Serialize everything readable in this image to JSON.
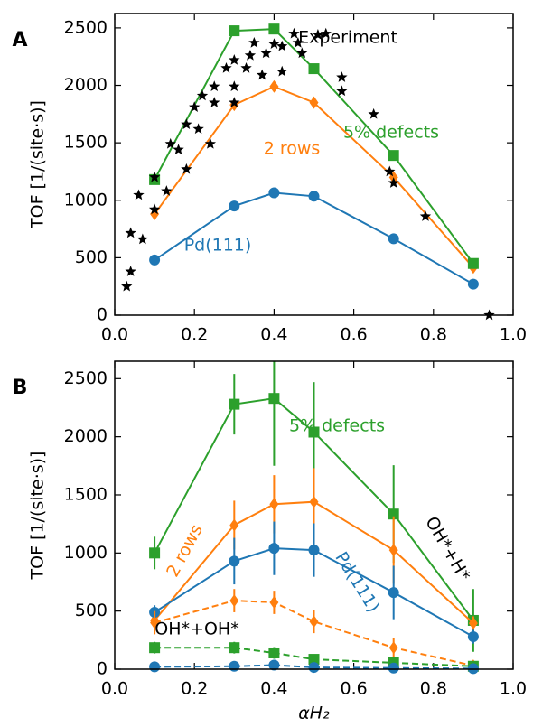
{
  "chart_data": [
    {
      "type": "line",
      "panel_label": "A",
      "ylabel": "TOF [1/(site·s)]",
      "xlim": [
        0,
        1
      ],
      "ylim": [
        0,
        2625
      ],
      "xticks": [
        {
          "value": 0,
          "label": "0.0"
        },
        0.2,
        0.4,
        0.6,
        0.8,
        {
          "value": 1,
          "label": "1.0"
        }
      ],
      "yticks": [
        0,
        500,
        1000,
        1500,
        2000,
        2500
      ],
      "series": [
        {
          "color": "#1f77b4",
          "marker": "circle",
          "linestyle": "solid",
          "x": [
            0.1,
            0.3,
            0.4,
            0.5,
            0.7,
            0.9
          ],
          "values": [
            480,
            950,
            1065,
            1035,
            665,
            270
          ]
        },
        {
          "color": "#ff7f0e",
          "marker": "diamond",
          "linestyle": "solid",
          "x": [
            0.1,
            0.3,
            0.4,
            0.5,
            0.7,
            0.9
          ],
          "values": [
            880,
            1830,
            1990,
            1850,
            1200,
            415
          ]
        },
        {
          "color": "#2ca02c",
          "marker": "square",
          "linestyle": "solid",
          "x": [
            0.1,
            0.3,
            0.4,
            0.5,
            0.7,
            0.9
          ],
          "values": [
            1180,
            2475,
            2490,
            2145,
            1390,
            450
          ]
        },
        {
          "color": "#000000",
          "marker": "star",
          "linestyle": "none",
          "x": [
            0.03,
            0.04,
            0.04,
            0.06,
            0.07,
            0.1,
            0.1,
            0.13,
            0.14,
            0.16,
            0.18,
            0.18,
            0.2,
            0.21,
            0.22,
            0.24,
            0.25,
            0.25,
            0.28,
            0.3,
            0.3,
            0.3,
            0.33,
            0.34,
            0.35,
            0.37,
            0.38,
            0.4,
            0.42,
            0.42,
            0.45,
            0.46,
            0.47,
            0.51,
            0.53,
            0.57,
            0.57,
            0.65,
            0.69,
            0.7,
            0.78,
            0.94
          ],
          "values": [
            250,
            715,
            380,
            1045,
            660,
            920,
            1200,
            1080,
            1490,
            1440,
            1660,
            1270,
            1810,
            1620,
            1910,
            1490,
            1990,
            1850,
            2150,
            1990,
            2220,
            1850,
            2150,
            2260,
            2370,
            2090,
            2280,
            2360,
            2340,
            2120,
            2450,
            2370,
            2280,
            2440,
            2450,
            2070,
            1950,
            1750,
            1250,
            1150,
            860,
            0
          ]
        }
      ],
      "annotations": [
        {
          "text": "Experiment",
          "color": "#000000"
        },
        {
          "text": "5% defects",
          "color": "#2ca02c"
        },
        {
          "text": "2 rows",
          "color": "#ff7f0e"
        },
        {
          "text": "Pd(111)",
          "color": "#1f77b4"
        }
      ]
    },
    {
      "type": "line",
      "panel_label": "B",
      "ylabel": "TOF [1/(site·s)]",
      "xlabel": "αH₂",
      "xlim": [
        0,
        1
      ],
      "ylim": [
        0,
        2650
      ],
      "xticks": [
        {
          "value": 0,
          "label": "0.0"
        },
        0.2,
        0.4,
        0.6,
        0.8,
        {
          "value": 1,
          "label": "1.0"
        }
      ],
      "yticks": [
        0,
        500,
        1000,
        1500,
        2000,
        2500
      ],
      "series": [
        {
          "color": "#2ca02c",
          "marker": "square",
          "linestyle": "solid",
          "x": [
            0.1,
            0.3,
            0.4,
            0.5,
            0.7,
            0.9
          ],
          "values": [
            1000,
            2280,
            2330,
            2040,
            1335,
            420
          ],
          "errors": [
            140,
            260,
            580,
            430,
            420,
            270
          ]
        },
        {
          "color": "#ff7f0e",
          "marker": "diamond",
          "linestyle": "solid",
          "x": [
            0.1,
            0.3,
            0.4,
            0.5,
            0.7,
            0.9
          ],
          "values": [
            420,
            1240,
            1420,
            1440,
            1025,
            395
          ],
          "errors": [
            100,
            210,
            250,
            290,
            290,
            60
          ]
        },
        {
          "color": "#1f77b4",
          "marker": "circle",
          "linestyle": "solid",
          "x": [
            0.1,
            0.3,
            0.4,
            0.5,
            0.7,
            0.9
          ],
          "values": [
            490,
            930,
            1040,
            1025,
            660,
            280
          ],
          "errors": [
            60,
            200,
            230,
            230,
            230,
            60
          ]
        },
        {
          "color": "#ff7f0e",
          "marker": "diamond",
          "linestyle": "dashed",
          "x": [
            0.1,
            0.3,
            0.4,
            0.5,
            0.7,
            0.9
          ],
          "values": [
            400,
            590,
            575,
            410,
            185,
            30
          ],
          "errors": [
            100,
            100,
            100,
            100,
            80,
            30
          ]
        },
        {
          "color": "#2ca02c",
          "marker": "square",
          "linestyle": "dashed",
          "x": [
            0.1,
            0.3,
            0.4,
            0.5,
            0.7,
            0.9
          ],
          "values": [
            185,
            185,
            140,
            85,
            55,
            25
          ],
          "errors": [
            50,
            50,
            50,
            40,
            30,
            20
          ]
        },
        {
          "color": "#1f77b4",
          "marker": "circle",
          "linestyle": "dashed",
          "x": [
            0.1,
            0.3,
            0.4,
            0.5,
            0.7,
            0.9
          ],
          "values": [
            20,
            25,
            35,
            15,
            10,
            5
          ],
          "errors": [
            20,
            20,
            20,
            15,
            10,
            5
          ]
        }
      ],
      "annotations": [
        {
          "text": "5% defects",
          "color": "#2ca02c"
        },
        {
          "text": "2 rows",
          "color": "#ff7f0e"
        },
        {
          "text": "Pd(111)",
          "color": "#1f77b4"
        },
        {
          "text": "OH*+H*",
          "color": "#000000"
        },
        {
          "text": "OH*+OH*",
          "color": "#000000"
        }
      ]
    }
  ]
}
